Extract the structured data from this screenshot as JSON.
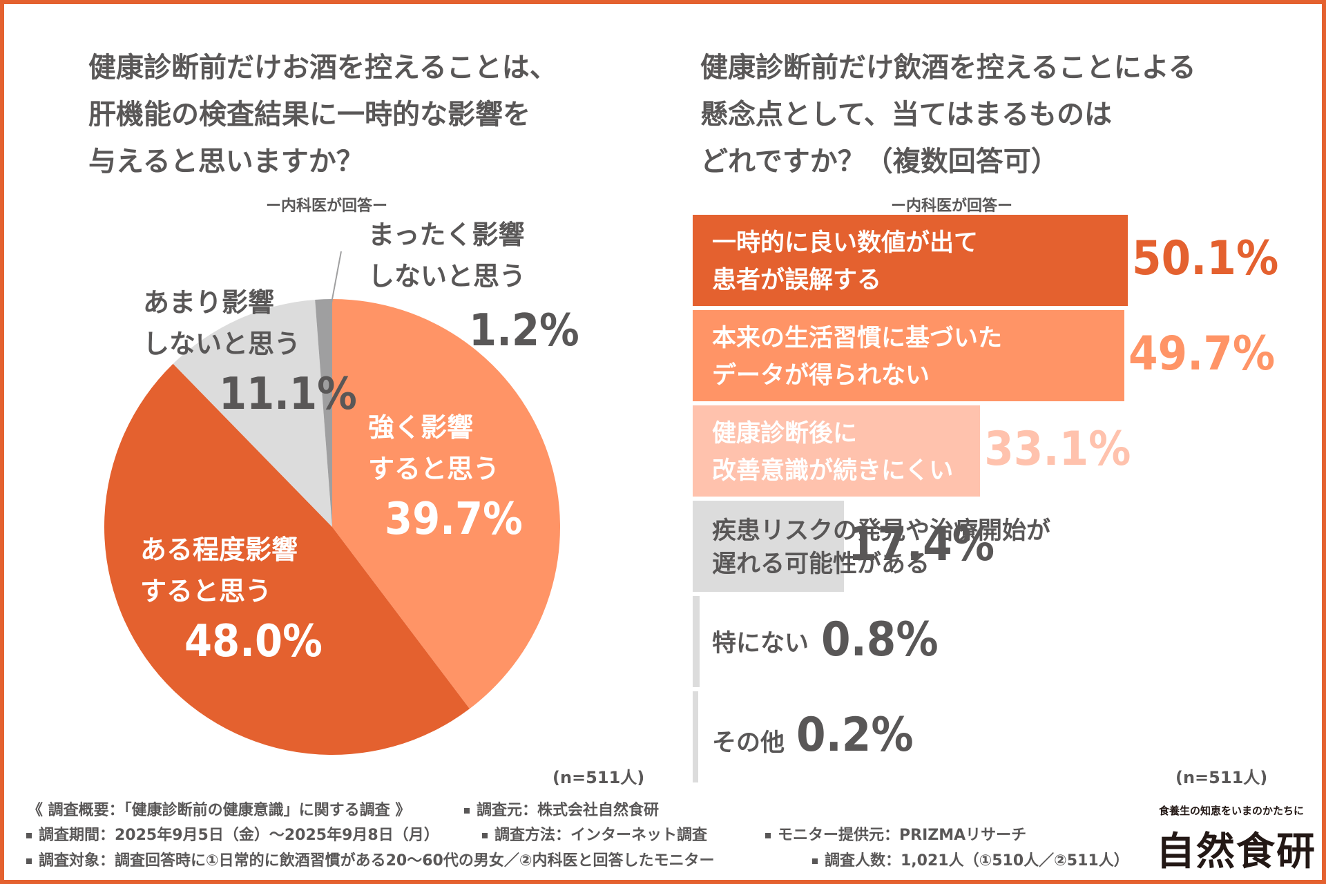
{
  "colors": {
    "frame": "#e4612f",
    "strong": "#ff9466",
    "moderate": "#e4612f",
    "little": "#dcdcdc",
    "none": "#9f9fa0",
    "text_gray": "#595757"
  },
  "left": {
    "title_lines": [
      "健康診断前だけお酒を控えることは、",
      "肝機能の検査結果に一時的な影響を",
      "与えると思いますか？"
    ],
    "subtitle": "ー内科医が回答ー",
    "n": "(n=511人)"
  },
  "right": {
    "title_lines": [
      "健康診断前だけ飲酒を控えることによる",
      "懸念点として、当てはまるものは",
      "どれですか？（複数回答可）"
    ],
    "subtitle": "ー内科医が回答ー",
    "n": "(n=511人)"
  },
  "chart_data": [
    {
      "type": "pie",
      "title": "健康診断前だけお酒を控えることは、肝機能の検査結果に一時的な影響を与えると思いますか？",
      "subtitle": "ー内科医が回答ー",
      "slices": [
        {
          "label_lines": [
            "強く影響",
            "すると思う"
          ],
          "value": 39.7,
          "value_text": "39.7%",
          "color": "#ff9466"
        },
        {
          "label_lines": [
            "ある程度影響",
            "すると思う"
          ],
          "value": 48.0,
          "value_text": "48.0%",
          "color": "#e4612f"
        },
        {
          "label_lines": [
            "あまり影響",
            "しないと思う"
          ],
          "value": 11.1,
          "value_text": "11.1%",
          "color": "#dcdcdc"
        },
        {
          "label_lines": [
            "まったく影響",
            "しないと思う"
          ],
          "value": 1.2,
          "value_text": "1.2%",
          "color": "#9f9fa0"
        }
      ]
    },
    {
      "type": "bar",
      "orientation": "horizontal",
      "title": "健康診断前だけ飲酒を控えることによる懸念点として、当てはまるものはどれですか？（複数回答可）",
      "subtitle": "ー内科医が回答ー",
      "xlim": [
        0,
        50.1
      ],
      "bars": [
        {
          "label_lines": [
            "一時的に良い数値が出て",
            "患者が誤解する"
          ],
          "value": 50.1,
          "value_text": "50.1%",
          "color": "#e4612f",
          "text_color": "#ffffff",
          "pct_color": "#e4612f"
        },
        {
          "label_lines": [
            "本来の生活習慣に基づいた",
            "データが得られない"
          ],
          "value": 49.7,
          "value_text": "49.7%",
          "color": "#ff9466",
          "text_color": "#ffffff",
          "pct_color": "#ff9466"
        },
        {
          "label_lines": [
            "健康診断後に",
            "改善意識が続きにくい"
          ],
          "value": 33.1,
          "value_text": "33.1%",
          "color": "#ffc2ad",
          "text_color": "#ffffff",
          "pct_color": "#ffc2ad"
        },
        {
          "label_lines": [
            "疾患リスクの発見や治療開始が",
            "遅れる可能性がある"
          ],
          "value": 17.4,
          "value_text": "17.4%",
          "color": "#dcdcdc",
          "text_color": "#595757",
          "pct_color": "#595757"
        },
        {
          "label_lines": [
            "特にない"
          ],
          "value": 0.8,
          "value_text": "0.8%",
          "color": "#dcdcdc",
          "text_color": "#595757",
          "pct_color": "#595757"
        },
        {
          "label_lines": [
            "その他"
          ],
          "value": 0.2,
          "value_text": "0.2%",
          "color": "#dcdcdc",
          "text_color": "#595757",
          "pct_color": "#595757"
        }
      ]
    }
  ],
  "footer": {
    "summary": "《 調査概要：「健康診断前の健康意識」に関する調査 》",
    "source": "調査元：株式会社自然食研",
    "period": "調査期間：2025年9月5日（金）〜2025年9月8日（月）",
    "method": "調査方法：インターネット調査",
    "monitor": "モニター提供元：PRIZMAリサーチ",
    "target": "調査対象：調査回答時に①日常的に飲酒習慣がある20〜60代の男女／②内科医と回答したモニター",
    "count": "調査人数：1,021人（①510人／②511人）"
  },
  "brand": {
    "tagline": "食養生の知恵をいまのかたちに",
    "name": "自然食研"
  }
}
